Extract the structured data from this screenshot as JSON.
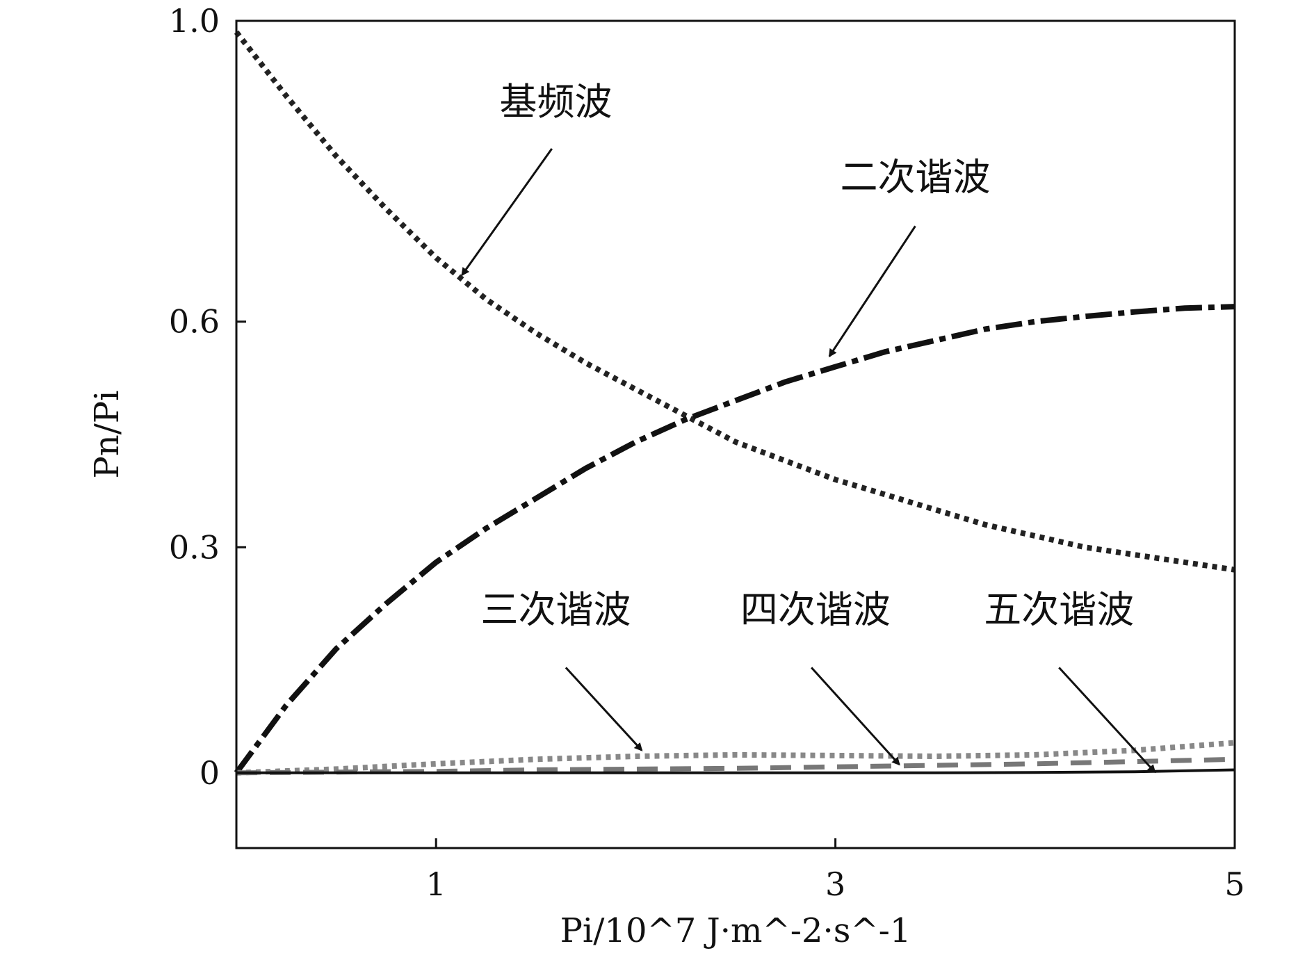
{
  "chart_data": {
    "type": "line",
    "xlabel": "Pi/10^7 J·m^-2·s^-1",
    "ylabel": "Pn/Pi",
    "xlim": [
      0,
      5
    ],
    "ylim": [
      -0.1,
      1.0
    ],
    "x_ticks": [
      {
        "value": 1,
        "label": "1"
      },
      {
        "value": 3,
        "label": "3"
      },
      {
        "value": 5,
        "label": "5"
      }
    ],
    "y_ticks": [
      {
        "value": 0,
        "label": "0"
      },
      {
        "value": 0.3,
        "label": "0.3"
      },
      {
        "value": 0.6,
        "label": "0.6"
      },
      {
        "value": 1.0,
        "label": "1.0"
      }
    ],
    "grid": false,
    "legend": "none",
    "series": [
      {
        "key": "fundamental",
        "style": "dotted",
        "color": "#222222",
        "x": [
          0,
          0.25,
          0.5,
          0.75,
          1,
          1.25,
          1.5,
          1.75,
          2,
          2.25,
          2.5,
          2.75,
          3,
          3.25,
          3.5,
          3.75,
          4,
          4.25,
          4.5,
          4.75,
          5
        ],
        "values": [
          0.985,
          0.9,
          0.82,
          0.75,
          0.685,
          0.63,
          0.585,
          0.545,
          0.51,
          0.475,
          0.44,
          0.415,
          0.39,
          0.37,
          0.35,
          0.33,
          0.315,
          0.3,
          0.29,
          0.28,
          0.27
        ]
      },
      {
        "key": "second",
        "style": "dashdot",
        "color": "#111111",
        "x": [
          0,
          0.25,
          0.5,
          0.75,
          1,
          1.25,
          1.5,
          1.75,
          2,
          2.25,
          2.5,
          2.75,
          3,
          3.25,
          3.5,
          3.75,
          4,
          4.25,
          4.5,
          4.75,
          5
        ],
        "values": [
          0.0,
          0.09,
          0.165,
          0.225,
          0.28,
          0.325,
          0.365,
          0.405,
          0.44,
          0.47,
          0.495,
          0.52,
          0.54,
          0.56,
          0.575,
          0.59,
          0.6,
          0.607,
          0.613,
          0.618,
          0.62
        ]
      },
      {
        "key": "third",
        "style": "dotted",
        "color": "#888888",
        "x": [
          0,
          0.5,
          1,
          1.5,
          2,
          2.5,
          3,
          3.5,
          4,
          4.5,
          5
        ],
        "values": [
          0.0,
          0.005,
          0.012,
          0.018,
          0.022,
          0.024,
          0.023,
          0.022,
          0.024,
          0.03,
          0.04
        ]
      },
      {
        "key": "fourth",
        "style": "dashed",
        "color": "#777777",
        "x": [
          0,
          0.5,
          1,
          1.5,
          2,
          2.5,
          3,
          3.5,
          4,
          4.5,
          5
        ],
        "values": [
          0.0,
          0.001,
          0.002,
          0.004,
          0.005,
          0.006,
          0.008,
          0.01,
          0.012,
          0.015,
          0.018
        ]
      },
      {
        "key": "fifth",
        "style": "solid",
        "color": "#111111",
        "x": [
          0,
          0.5,
          1,
          1.5,
          2,
          2.5,
          3,
          3.5,
          4,
          4.5,
          5
        ],
        "values": [
          0.0,
          0.0,
          0.0,
          0.0,
          0.0,
          0.0,
          0.0,
          0.0,
          0.0005,
          0.0015,
          0.004
        ]
      }
    ],
    "annotations": [
      {
        "key": "fundamental",
        "text": "基频波",
        "text_x": 1.6,
        "text_y": 0.875,
        "arrow_from": [
          1.58,
          0.83
        ],
        "arrow_to": [
          1.13,
          0.662
        ]
      },
      {
        "key": "second",
        "text": "二次谐波",
        "text_x": 3.4,
        "text_y": 0.775,
        "arrow_from": [
          3.4,
          0.727
        ],
        "arrow_to": [
          2.97,
          0.554
        ]
      },
      {
        "key": "third",
        "text": "三次谐波",
        "text_x": 1.6,
        "text_y": 0.2,
        "arrow_from": [
          1.65,
          0.14
        ],
        "arrow_to": [
          2.03,
          0.03
        ]
      },
      {
        "key": "fourth",
        "text": "四次谐波",
        "text_x": 2.9,
        "text_y": 0.2,
        "arrow_from": [
          2.88,
          0.14
        ],
        "arrow_to": [
          3.32,
          0.011
        ]
      },
      {
        "key": "fifth",
        "text": "五次谐波",
        "text_x": 4.12,
        "text_y": 0.2,
        "arrow_from": [
          4.12,
          0.14
        ],
        "arrow_to": [
          4.6,
          0.001
        ]
      }
    ]
  }
}
